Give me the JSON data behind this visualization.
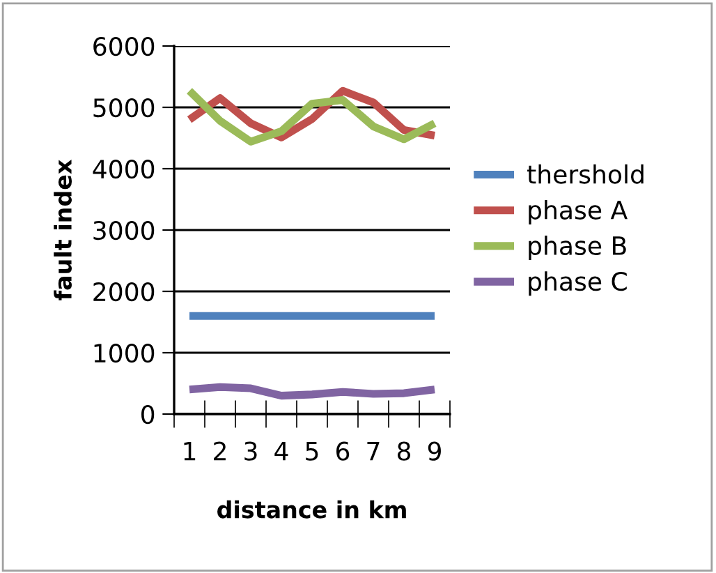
{
  "chart_data": {
    "type": "line",
    "xlabel": "distance in km",
    "ylabel": "fault index",
    "categories": [
      "1",
      "2",
      "3",
      "4",
      "5",
      "6",
      "7",
      "8",
      "9"
    ],
    "series": [
      {
        "name": "thershold",
        "color": "#4f81bd",
        "values": [
          1600,
          1600,
          1600,
          1600,
          1600,
          1600,
          1600,
          1600,
          1600
        ]
      },
      {
        "name": "phase A",
        "color": "#c0504d",
        "values": [
          4800,
          5150,
          4740,
          4510,
          4810,
          5270,
          5080,
          4630,
          4540
        ]
      },
      {
        "name": "phase B",
        "color": "#9bbb59",
        "values": [
          5270,
          4780,
          4440,
          4610,
          5060,
          5120,
          4690,
          4480,
          4740
        ]
      },
      {
        "name": "phase C",
        "color": "#8064a2",
        "values": [
          400,
          440,
          420,
          300,
          320,
          360,
          330,
          340,
          400
        ]
      }
    ],
    "ylim": [
      0,
      6000
    ],
    "yticks": [
      0,
      1000,
      2000,
      3000,
      4000,
      5000,
      6000
    ],
    "grid": "y",
    "legend": "right",
    "marker": "none",
    "line_style": "solid"
  }
}
